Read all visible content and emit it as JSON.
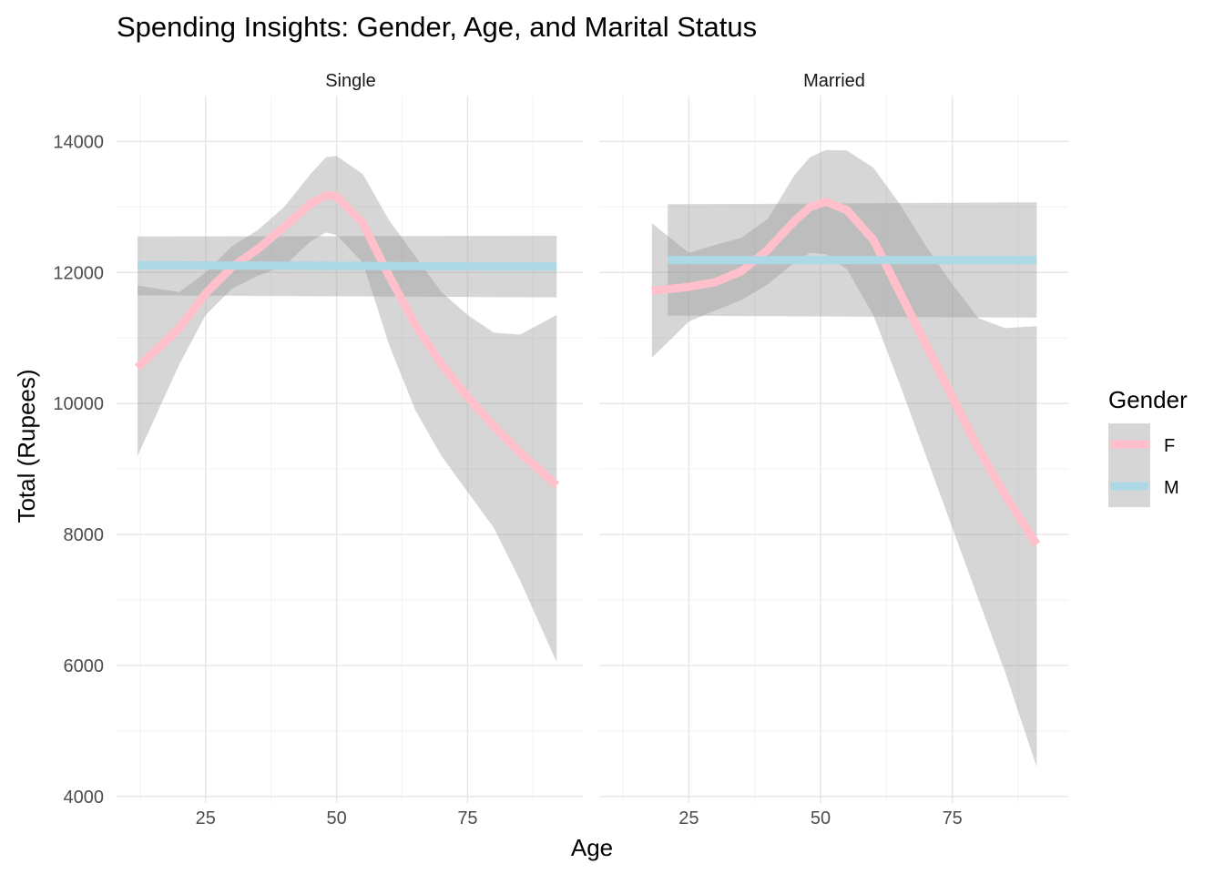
{
  "chart_data": {
    "type": "line",
    "title": "Spending Insights: Gender, Age, and Marital Status",
    "xlabel": "Age",
    "ylabel": "Total (Rupees)",
    "x_ticks": [
      25,
      50,
      75
    ],
    "y_ticks": [
      4000,
      6000,
      8000,
      10000,
      12000,
      14000
    ],
    "xlim": [
      8,
      97
    ],
    "ylim": [
      3900,
      14700
    ],
    "grid": true,
    "legend": {
      "title": "Gender",
      "position": "right",
      "entries": [
        {
          "label": "F",
          "color": "#FFC0CB"
        },
        {
          "label": "M",
          "color": "#ADD8E6"
        }
      ]
    },
    "panels": [
      {
        "strip": "Single",
        "series": [
          {
            "name": "F",
            "color": "#FFC0CB",
            "x": [
              12,
              20,
              25,
              30,
              35,
              40,
              45,
              48,
              50,
              55,
              60,
              65,
              70,
              75,
              80,
              85,
              92
            ],
            "y": [
              10550,
              11150,
              11680,
              12080,
              12360,
              12700,
              13050,
              13180,
              13160,
              12750,
              11950,
              11200,
              10600,
              10100,
              9650,
              9250,
              8750
            ],
            "ci_low": [
              9200,
              10600,
              11350,
              11750,
              11950,
              12100,
              12470,
              12610,
              12570,
              12150,
              10900,
              9900,
              9200,
              8650,
              8100,
              7300,
              6050
            ],
            "ci_high": [
              11800,
              11700,
              12000,
              12400,
              12650,
              13000,
              13500,
              13760,
              13780,
              13500,
              12800,
              12250,
              11700,
              11350,
              11080,
              11050,
              11350
            ]
          },
          {
            "name": "M",
            "color": "#ADD8E6",
            "x": [
              12,
              92
            ],
            "y": [
              12110,
              12090
            ],
            "ci_low": [
              11650,
              11620
            ],
            "ci_high": [
              12550,
              12560
            ]
          }
        ]
      },
      {
        "strip": "Married",
        "series": [
          {
            "name": "F",
            "color": "#FFC0CB",
            "x": [
              18,
              25,
              30,
              35,
              40,
              45,
              48,
              51,
              55,
              60,
              65,
              70,
              75,
              80,
              85,
              91
            ],
            "y": [
              11720,
              11780,
              11850,
              12020,
              12350,
              12780,
              13000,
              13080,
              12950,
              12500,
              11700,
              10900,
              10100,
              9300,
              8600,
              7850
            ],
            "ci_low": [
              10700,
              11250,
              11420,
              11580,
              11820,
              12150,
              12300,
              12280,
              12050,
              11350,
              10300,
              9200,
              8100,
              7000,
              5900,
              4450
            ],
            "ci_high": [
              12750,
              12300,
              12420,
              12530,
              12820,
              13480,
              13760,
              13870,
              13860,
              13600,
              13050,
              12400,
              11820,
              11300,
              11150,
              11180
            ]
          },
          {
            "name": "M",
            "color": "#ADD8E6",
            "x": [
              21,
              91
            ],
            "y": [
              12190,
              12190
            ],
            "ci_low": [
              11340,
              11310
            ],
            "ci_high": [
              13040,
              13070
            ]
          }
        ]
      }
    ]
  }
}
